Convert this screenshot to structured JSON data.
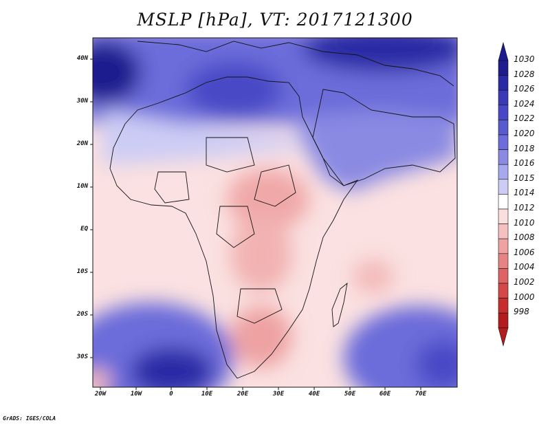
{
  "title": "MSLP [hPa], VT: 2017121300",
  "credit": "GrADS: IGES/COLA",
  "axes": {
    "y_ticks": [
      "40N",
      "30N",
      "20N",
      "10N",
      "EQ",
      "10S",
      "20S",
      "30S"
    ],
    "x_ticks": [
      "20W",
      "10W",
      "0",
      "10E",
      "20E",
      "30E",
      "40E",
      "50E",
      "60E",
      "70E"
    ]
  },
  "colorbar": {
    "levels": [
      "1030",
      "1028",
      "1026",
      "1024",
      "1022",
      "1020",
      "1018",
      "1016",
      "1015",
      "1014",
      "1012",
      "1010",
      "1008",
      "1006",
      "1004",
      "1002",
      "1000",
      "998"
    ],
    "colors": [
      "#1d1b8e",
      "#2a2aa6",
      "#3a3ab8",
      "#4848c6",
      "#5a5ad0",
      "#6c6cda",
      "#8a8ae3",
      "#a8a8ec",
      "#ccccf5",
      "#ffffff",
      "#fbdede",
      "#f6c0c0",
      "#eea2a2",
      "#e68484",
      "#dd6464",
      "#d44848",
      "#c62e2e",
      "#b31c1c"
    ]
  },
  "chart_data": {
    "type": "heatmap",
    "variable": "MSLP",
    "units": "hPa",
    "valid_time": "2017121300",
    "lon_range": [
      -22,
      80
    ],
    "lat_range": [
      -37,
      45
    ]
  }
}
